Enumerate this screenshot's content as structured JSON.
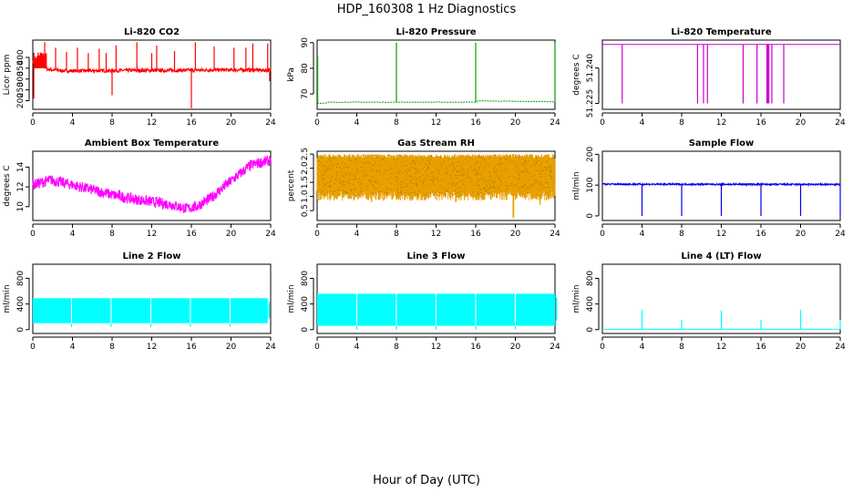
{
  "figure_title": "HDP_160308  1 Hz Diagnostics",
  "x_axis_label": "Hour of Day (UTC)",
  "chart_data": [
    {
      "id": "co2",
      "type": "line",
      "title": "Li-820 CO2",
      "ylabel": "Licor ppm",
      "color": "#ff0000",
      "xlim": [
        0,
        24
      ],
      "ylim": [
        160,
        480
      ],
      "xticks": [
        0,
        4,
        8,
        12,
        16,
        20,
        24
      ],
      "yticks": [
        200,
        250,
        300,
        350,
        400
      ],
      "baseline": [
        [
          0,
          380
        ],
        [
          0.5,
          395
        ],
        [
          1,
          365
        ],
        [
          1.5,
          345
        ],
        [
          3,
          338
        ],
        [
          6,
          338
        ],
        [
          10,
          340
        ],
        [
          14,
          340
        ],
        [
          18,
          342
        ],
        [
          22,
          342
        ],
        [
          23.8,
          340
        ]
      ],
      "noise": 8,
      "dense": true,
      "spikes": [
        [
          1.2,
          470
        ],
        [
          2.3,
          445
        ],
        [
          3.4,
          425
        ],
        [
          4.5,
          445
        ],
        [
          5.6,
          420
        ],
        [
          6.7,
          440
        ],
        [
          7.4,
          420
        ],
        [
          8.4,
          455
        ],
        [
          10.5,
          470
        ],
        [
          12,
          420
        ],
        [
          12.5,
          455
        ],
        [
          14.3,
          430
        ],
        [
          16.4,
          470
        ],
        [
          18.3,
          450
        ],
        [
          20.3,
          445
        ],
        [
          21.5,
          445
        ],
        [
          22.2,
          465
        ],
        [
          23.7,
          465
        ]
      ],
      "dips": [
        [
          0.1,
          210
        ],
        [
          8,
          225
        ],
        [
          16,
          165
        ],
        [
          23.9,
          290
        ]
      ]
    },
    {
      "id": "pressure",
      "type": "line",
      "title": "Li-820 Pressure",
      "ylabel": "kPa",
      "color": "#00a000",
      "xlim": [
        0,
        24
      ],
      "ylim": [
        64,
        91
      ],
      "xticks": [
        0,
        4,
        8,
        12,
        16,
        20,
        24
      ],
      "yticks": [
        70,
        80,
        90
      ],
      "baseline": [
        [
          0,
          66.4
        ],
        [
          1,
          66.4
        ],
        [
          1.2,
          66.8
        ],
        [
          16,
          66.8
        ],
        [
          16.2,
          67.3
        ],
        [
          20,
          67.1
        ],
        [
          24,
          67.0
        ]
      ],
      "noise": 0.1,
      "dense": false,
      "spikes": [
        [
          0.05,
          85
        ],
        [
          8,
          90
        ],
        [
          16,
          90
        ],
        [
          24,
          90
        ]
      ],
      "dips": []
    },
    {
      "id": "licor_temp",
      "type": "line",
      "title": "Li-820 Temperature",
      "ylabel": "degrees C",
      "color": "#cc00cc",
      "xlim": [
        0,
        24
      ],
      "ylim": [
        51.2225,
        51.2518
      ],
      "xticks": [
        0,
        4,
        8,
        12,
        16,
        20,
        24
      ],
      "yticks": [
        51.225,
        51.24
      ],
      "ytick_labels": [
        "51.225",
        "51.240"
      ],
      "baseline": [
        [
          0,
          51.25
        ],
        [
          24,
          51.25
        ]
      ],
      "noise": 0,
      "dense": false,
      "spikes": [],
      "dips": [
        [
          2,
          51.225
        ],
        [
          9.6,
          51.225
        ],
        [
          10.2,
          51.225
        ],
        [
          10.6,
          51.225
        ],
        [
          14.2,
          51.225
        ],
        [
          15.6,
          51.225
        ],
        [
          16.6,
          51.225
        ],
        [
          16.7,
          51.225
        ],
        [
          16.8,
          51.225
        ],
        [
          17.1,
          51.225
        ],
        [
          18.3,
          51.225
        ]
      ]
    },
    {
      "id": "box_temp",
      "type": "line",
      "title": "Ambient Box Temperature",
      "ylabel": "degrees C",
      "color": "#ff00ff",
      "xlim": [
        0,
        24
      ],
      "ylim": [
        8.6,
        15.6
      ],
      "xticks": [
        0,
        4,
        8,
        12,
        16,
        20,
        24
      ],
      "yticks": [
        10,
        12,
        14
      ],
      "baseline": [
        [
          0,
          12.2
        ],
        [
          1.8,
          12.7
        ],
        [
          4,
          12.2
        ],
        [
          6,
          11.7
        ],
        [
          8,
          11.2
        ],
        [
          10,
          10.8
        ],
        [
          12,
          10.5
        ],
        [
          14,
          10.2
        ],
        [
          15.5,
          9.8
        ],
        [
          16.5,
          10.0
        ],
        [
          18,
          10.9
        ],
        [
          20,
          12.6
        ],
        [
          22,
          14.2
        ],
        [
          24,
          14.7
        ]
      ],
      "noise": 0.55,
      "dense": true,
      "spikes": [],
      "dips": []
    },
    {
      "id": "rh",
      "type": "line",
      "title": "Gas Stream RH",
      "ylabel": "percent",
      "color": "#e8a000",
      "xlim": [
        0,
        24
      ],
      "ylim": [
        0.15,
        2.6
      ],
      "xticks": [
        0,
        4,
        8,
        12,
        16,
        20,
        24
      ],
      "yticks": [
        0.5,
        1.0,
        1.5,
        2.0,
        2.5
      ],
      "ytick_labels": [
        "0.5",
        "1.0",
        "1.5",
        "2.0",
        "2.5"
      ],
      "band": [
        0.85,
        2.5
      ],
      "lowdips": [
        [
          2,
          0.9
        ],
        [
          5.5,
          0.8
        ],
        [
          9.5,
          0.85
        ],
        [
          14,
          0.8
        ],
        [
          19.8,
          0.25
        ],
        [
          22.5,
          0.7
        ]
      ],
      "baseline": [
        [
          0,
          1.6
        ],
        [
          24,
          1.6
        ]
      ],
      "noise": 0,
      "dense": false,
      "spikes": [],
      "dips": []
    },
    {
      "id": "sample_flow",
      "type": "line",
      "title": "Sample Flow",
      "ylabel": "ml/min",
      "color": "#0000ee",
      "xlim": [
        0,
        24
      ],
      "ylim": [
        -15,
        210
      ],
      "xticks": [
        0,
        4,
        8,
        12,
        16,
        20,
        24
      ],
      "yticks": [
        0,
        100,
        200
      ],
      "baseline": [
        [
          0,
          103
        ],
        [
          24,
          102
        ]
      ],
      "noise": 2.5,
      "dense": true,
      "spikes": [],
      "dips": [
        [
          4,
          0
        ],
        [
          8,
          0
        ],
        [
          12,
          0
        ],
        [
          16,
          0
        ],
        [
          20,
          0
        ],
        [
          24,
          0
        ]
      ]
    },
    {
      "id": "line2_flow",
      "type": "line",
      "title": "Line 2 Flow",
      "ylabel": "ml/min",
      "color": "#00ffff",
      "xlim": [
        0,
        24
      ],
      "ylim": [
        -60,
        1020
      ],
      "xticks": [
        0,
        4,
        8,
        12,
        16,
        20,
        24
      ],
      "yticks": [
        0,
        400,
        800
      ],
      "band": [
        100,
        490
      ],
      "gaps": [
        3.9,
        7.9,
        11.9,
        15.9,
        19.9
      ],
      "band_end": 23.7,
      "baseline": [
        [
          0,
          300
        ],
        [
          24,
          300
        ]
      ],
      "noise": 0,
      "dense": false,
      "spikes": [],
      "dips": []
    },
    {
      "id": "line3_flow",
      "type": "line",
      "title": "Line 3 Flow",
      "ylabel": "ml/min",
      "color": "#00ffff",
      "xlim": [
        0,
        24
      ],
      "ylim": [
        -60,
        1020
      ],
      "xticks": [
        0,
        4,
        8,
        12,
        16,
        20,
        24
      ],
      "yticks": [
        0,
        400,
        800
      ],
      "band": [
        60,
        560
      ],
      "gaps": [
        4,
        8,
        12,
        16,
        20
      ],
      "band_end": 24,
      "baseline": [
        [
          0,
          300
        ],
        [
          24,
          300
        ]
      ],
      "noise": 0,
      "dense": false,
      "spikes": [],
      "dips": []
    },
    {
      "id": "line4_flow",
      "type": "line",
      "title": "Line 4 (LT) Flow",
      "ylabel": "ml/min",
      "color": "#00ffff",
      "xlim": [
        0,
        24
      ],
      "ylim": [
        -60,
        1020
      ],
      "xticks": [
        0,
        4,
        8,
        12,
        16,
        20,
        24
      ],
      "yticks": [
        0,
        400,
        800
      ],
      "baseline": [
        [
          0,
          5
        ],
        [
          24,
          5
        ]
      ],
      "noise": 0,
      "dense": false,
      "spikes": [
        [
          4,
          310
        ],
        [
          8,
          150
        ],
        [
          12,
          300
        ],
        [
          16,
          150
        ],
        [
          20,
          310
        ],
        [
          24,
          150
        ]
      ],
      "dips": []
    }
  ]
}
